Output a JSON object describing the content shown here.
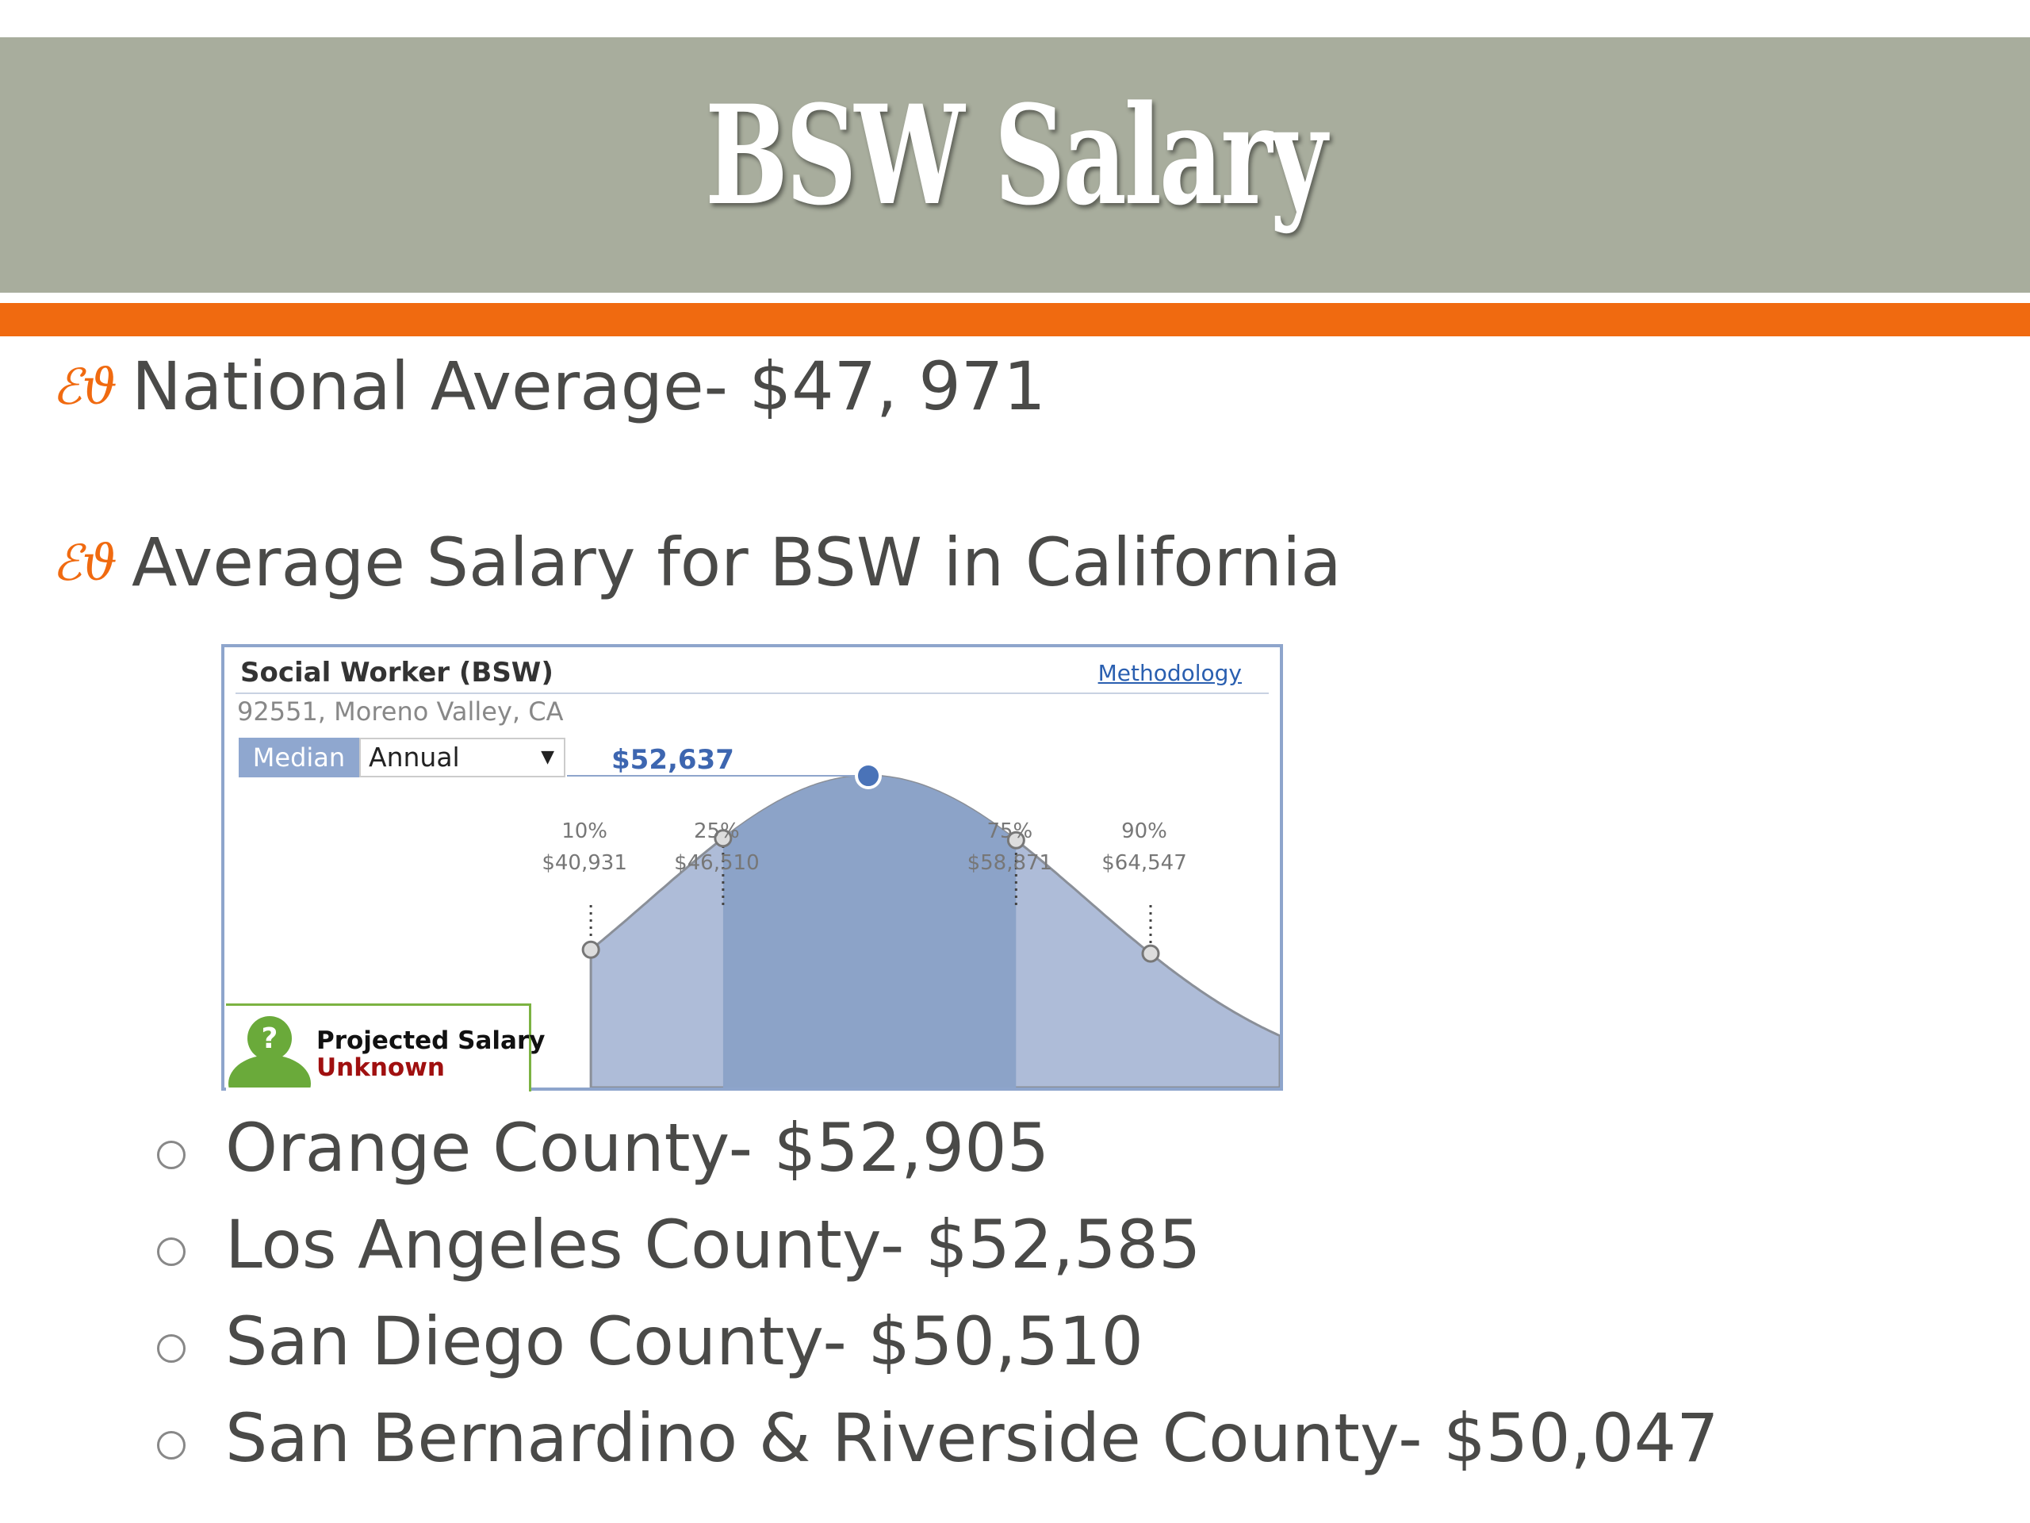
{
  "slide": {
    "title": "BSW Salary",
    "bullets": [
      "National Average- $47, 971",
      "Average Salary for BSW in California"
    ],
    "sub_bullets": [
      "Orange County- $52,905",
      "Los Angeles County- $52,585",
      "San Diego County- $50,510",
      "San Bernardino & Riverside County- $50,047"
    ],
    "colors": {
      "title_band": "#a8ad9d",
      "accent": "#f06a10",
      "text": "#4a4a48"
    }
  },
  "widget": {
    "title": "Social Worker (BSW)",
    "methodology_link": "Methodology",
    "location": "92551, Moreno Valley, CA",
    "median_label": "Median",
    "period_select": "Annual",
    "median_value": "$52,637",
    "projected_line1": "Projected Salary",
    "projected_line2": "Unknown"
  },
  "chart_data": {
    "type": "area",
    "median": 52637,
    "percentiles": [
      {
        "pct": "10%",
        "value": 40931,
        "label": "$40,931"
      },
      {
        "pct": "25%",
        "value": 46510,
        "label": "$46,510"
      },
      {
        "pct": "75%",
        "value": 58871,
        "label": "$58,871"
      },
      {
        "pct": "90%",
        "value": 64547,
        "label": "$64,547"
      }
    ]
  }
}
